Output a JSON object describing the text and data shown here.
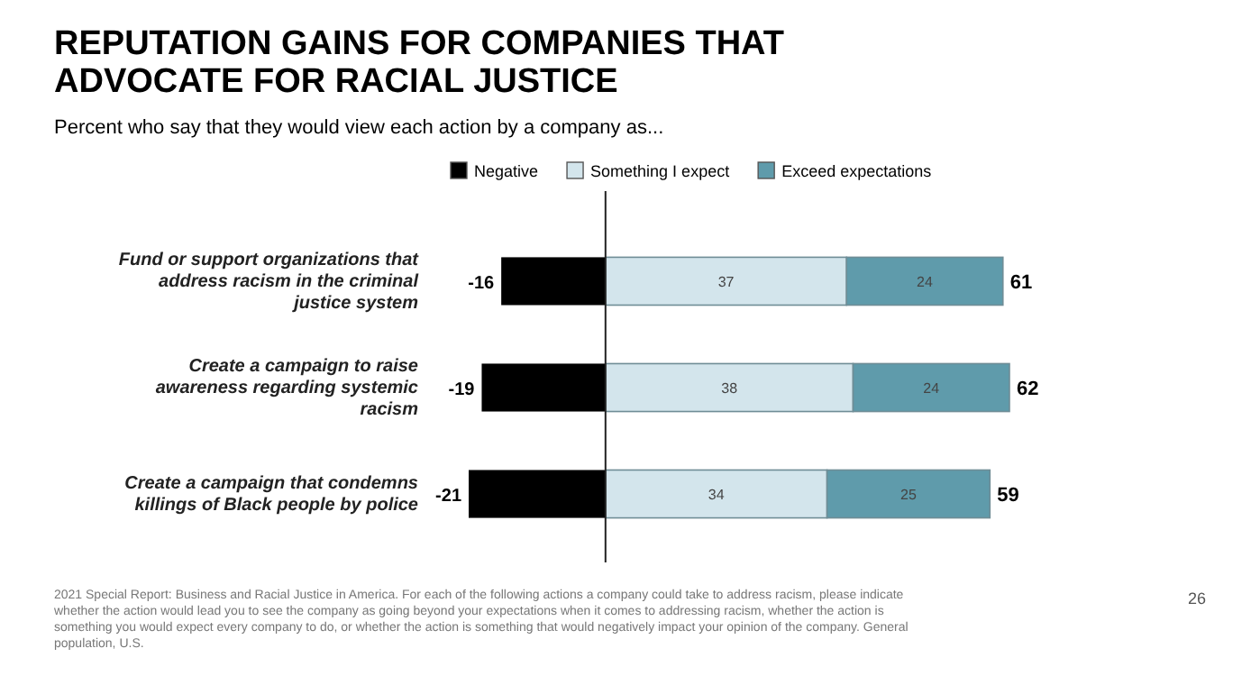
{
  "chart_data": {
    "type": "bar",
    "orientation": "horizontal",
    "stacked": true,
    "title": "REPUTATION GAINS FOR COMPANIES THAT ADVOCATE FOR RACIAL JUSTICE",
    "subtitle": "Percent who say that they would view each action by a company as...",
    "categories": [
      "Fund or support organizations that address racism in the criminal justice system",
      "Create a campaign to raise awareness regarding systemic racism",
      "Create a campaign that condemns killings of Black people by police"
    ],
    "series": [
      {
        "name": "Negative",
        "color": "#000000",
        "values": [
          -16,
          -19,
          -21
        ]
      },
      {
        "name": "Something I expect",
        "color": "#d3e5ec",
        "values": [
          37,
          38,
          34
        ]
      },
      {
        "name": "Exceed expectations",
        "color": "#5f9bab",
        "values": [
          24,
          24,
          25
        ]
      }
    ],
    "data_labels": true,
    "legend": "top",
    "tick_labels": false,
    "annotations": [
      {
        "text": "61",
        "x": 61,
        "y": "Fund or support organizations that address racism in the criminal justice system"
      },
      {
        "text": "62",
        "x": 62,
        "y": "Create a campaign to raise awareness regarding systemic racism"
      },
      {
        "text": "59",
        "x": 59,
        "y": "Create a campaign that condemns killings of Black people by police"
      },
      "2021 Special Report: Business and Racial Justice in America. For each of the following actions a company could take to address racism, please indicate whether the action would lead you to see the company as going beyond your expectations when it comes to addressing racism, whether the action is something you would expect every company to do, or whether the action is something that would negatively impact your opinion of the company. General population, U.S.",
      "26"
    ]
  }
}
